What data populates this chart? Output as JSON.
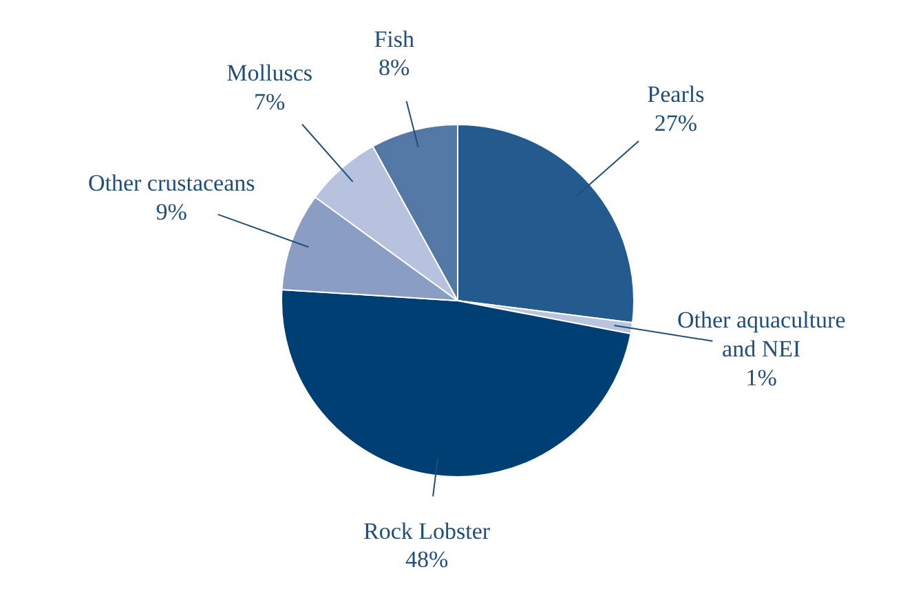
{
  "chart_data": {
    "type": "pie",
    "categories": [
      "Pearls",
      "Other aquaculture\nand NEI",
      "Rock Lobster",
      "Other crustaceans",
      "Molluscs",
      "Fish"
    ],
    "values": [
      27,
      1,
      48,
      9,
      7,
      8
    ],
    "value_labels": [
      "27%",
      "1%",
      "48%",
      "9%",
      "7%",
      "8%"
    ],
    "colors": [
      "#245b8f",
      "#b9c5de",
      "#003f73",
      "#8a9ec4",
      "#b7c3de",
      "#5478a6"
    ]
  }
}
